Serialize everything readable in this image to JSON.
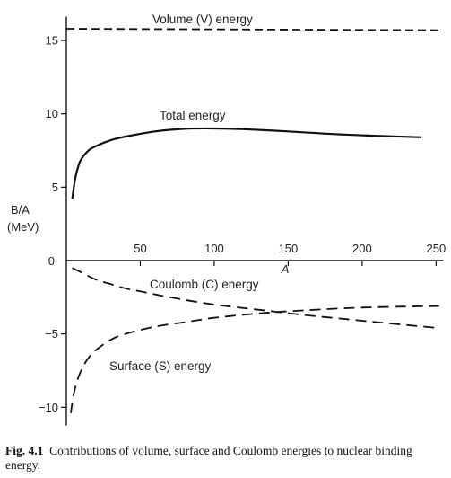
{
  "caption": {
    "label": "Fig. 4.1",
    "text": "Contributions of volume, surface and Coulomb energies to nuclear binding energy."
  },
  "chart_data": {
    "type": "line",
    "xlabel": "A",
    "ylabel_line1": "B/A",
    "ylabel_line2": "(MeV)",
    "xlim": [
      0,
      255
    ],
    "ylim": [
      -11,
      16.5
    ],
    "x_ticks": [
      50,
      100,
      150,
      200,
      250
    ],
    "y_ticks": [
      -10,
      -5,
      5,
      10,
      15
    ],
    "y_tick_labels": [
      "−10",
      "−5",
      "5",
      "10",
      "15"
    ],
    "zero_label": "0",
    "grid": false,
    "series": [
      {
        "name": "Volume (V) energy",
        "style": "dashed",
        "x": [
          0,
          252
        ],
        "y": [
          15.8,
          15.7
        ]
      },
      {
        "name": "Total energy",
        "style": "solid",
        "x": [
          4,
          6,
          8,
          10,
          15,
          20,
          30,
          40,
          60,
          80,
          100,
          120,
          150,
          180,
          210,
          240
        ],
        "y": [
          4.2,
          5.6,
          6.4,
          6.9,
          7.5,
          7.8,
          8.2,
          8.45,
          8.8,
          8.98,
          9.0,
          8.95,
          8.8,
          8.62,
          8.5,
          8.4
        ]
      },
      {
        "name": "Coulomb (C) energy",
        "style": "dashed",
        "x": [
          4,
          10,
          20,
          30,
          40,
          50,
          70,
          100,
          130,
          160,
          190,
          220,
          252
        ],
        "y": [
          -0.5,
          -0.8,
          -1.3,
          -1.6,
          -1.9,
          -2.1,
          -2.5,
          -3.0,
          -3.35,
          -3.7,
          -4.0,
          -4.3,
          -4.6
        ]
      },
      {
        "name": "Surface (S) energy",
        "style": "dashed",
        "x": [
          3,
          5,
          8,
          12,
          16,
          20,
          30,
          40,
          60,
          80,
          100,
          130,
          160,
          200,
          252
        ],
        "y": [
          -10.4,
          -9.1,
          -8.0,
          -7.1,
          -6.5,
          -6.1,
          -5.4,
          -5.0,
          -4.5,
          -4.2,
          -3.9,
          -3.6,
          -3.4,
          -3.2,
          -3.1
        ]
      }
    ],
    "labels": {
      "volume": "Volume (V) energy",
      "total": "Total energy",
      "coulomb": "Coulomb (C) energy",
      "surface": "Surface (S) energy"
    }
  }
}
